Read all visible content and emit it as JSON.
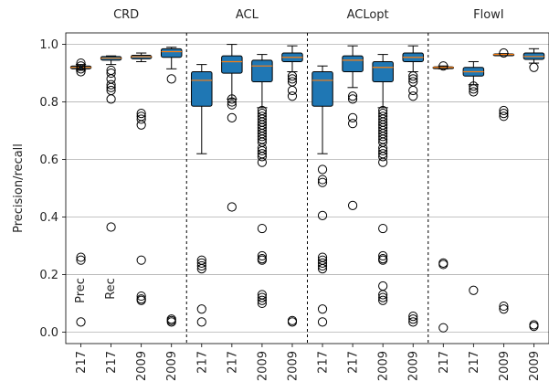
{
  "chart_data": {
    "type": "box",
    "ylabel": "Precision/recall",
    "ylim": [
      -0.04,
      1.04
    ],
    "yticks": [
      "0.0",
      "0.2",
      "0.4",
      "0.6",
      "0.8",
      "1.0"
    ],
    "grid": "horizontal",
    "groups": [
      {
        "title": "CRD",
        "boxes": [
          {
            "x": "217",
            "min": 0.91,
            "q1": 0.915,
            "median": 0.92,
            "q3": 0.925,
            "max": 0.93,
            "fliers": [
              0.935,
              0.925,
              0.915,
              0.905,
              0.26,
              0.25,
              0.035
            ]
          },
          {
            "x": "217",
            "min": 0.93,
            "q1": 0.945,
            "median": 0.952,
            "q3": 0.958,
            "max": 0.96,
            "fliers": [
              0.91,
              0.9,
              0.88,
              0.86,
              0.85,
              0.84,
              0.81,
              0.365
            ]
          },
          {
            "x": "2009",
            "min": 0.94,
            "q1": 0.95,
            "median": 0.957,
            "q3": 0.962,
            "max": 0.97,
            "fliers": [
              0.76,
              0.75,
              0.74,
              0.72,
              0.25,
              0.125,
              0.115,
              0.11
            ]
          },
          {
            "x": "2009",
            "min": 0.915,
            "q1": 0.955,
            "median": 0.975,
            "q3": 0.985,
            "max": 0.99,
            "fliers": [
              0.88,
              0.045,
              0.04,
              0.035
            ]
          }
        ]
      },
      {
        "title": "ACL",
        "boxes": [
          {
            "x": "217",
            "min": 0.62,
            "q1": 0.785,
            "median": 0.875,
            "q3": 0.905,
            "max": 0.93,
            "fliers": [
              0.25,
              0.24,
              0.23,
              0.22,
              0.08,
              0.035
            ]
          },
          {
            "x": "217",
            "min": 0.81,
            "q1": 0.9,
            "median": 0.94,
            "q3": 0.96,
            "max": 1.0,
            "fliers": [
              0.81,
              0.8,
              0.79,
              0.745,
              0.435
            ]
          },
          {
            "x": "2009",
            "min": 0.78,
            "q1": 0.87,
            "median": 0.925,
            "q3": 0.945,
            "max": 0.965,
            "fliers": [
              0.77,
              0.76,
              0.75,
              0.74,
              0.73,
              0.72,
              0.71,
              0.7,
              0.69,
              0.68,
              0.67,
              0.66,
              0.64,
              0.63,
              0.62,
              0.61,
              0.59,
              0.36,
              0.265,
              0.255,
              0.25,
              0.13,
              0.12,
              0.11,
              0.1
            ]
          },
          {
            "x": "2009",
            "min": 0.905,
            "q1": 0.94,
            "median": 0.955,
            "q3": 0.97,
            "max": 0.995,
            "fliers": [
              0.89,
              0.88,
              0.87,
              0.84,
              0.82,
              0.04,
              0.035
            ]
          }
        ]
      },
      {
        "title": "ACLopt",
        "boxes": [
          {
            "x": "217",
            "min": 0.62,
            "q1": 0.785,
            "median": 0.875,
            "q3": 0.905,
            "max": 0.925,
            "fliers": [
              0.565,
              0.53,
              0.52,
              0.405,
              0.26,
              0.25,
              0.24,
              0.23,
              0.22,
              0.08,
              0.035
            ]
          },
          {
            "x": "217",
            "min": 0.85,
            "q1": 0.905,
            "median": 0.945,
            "q3": 0.96,
            "max": 0.995,
            "fliers": [
              0.82,
              0.81,
              0.745,
              0.725,
              0.44
            ]
          },
          {
            "x": "2009",
            "min": 0.78,
            "q1": 0.87,
            "median": 0.92,
            "q3": 0.94,
            "max": 0.965,
            "fliers": [
              0.77,
              0.76,
              0.75,
              0.74,
              0.73,
              0.72,
              0.71,
              0.7,
              0.69,
              0.68,
              0.67,
              0.66,
              0.64,
              0.63,
              0.62,
              0.61,
              0.59,
              0.36,
              0.265,
              0.255,
              0.25,
              0.16,
              0.13,
              0.12,
              0.11
            ]
          },
          {
            "x": "2009",
            "min": 0.905,
            "q1": 0.94,
            "median": 0.955,
            "q3": 0.97,
            "max": 0.995,
            "fliers": [
              0.89,
              0.88,
              0.87,
              0.84,
              0.82,
              0.055,
              0.045,
              0.035
            ]
          }
        ]
      },
      {
        "title": "FlowI",
        "boxes": [
          {
            "x": "217",
            "min": 0.915,
            "q1": 0.918,
            "median": 0.92,
            "q3": 0.922,
            "max": 0.925,
            "fliers": [
              0.925,
              0.235,
              0.24,
              0.015
            ]
          },
          {
            "x": "217",
            "min": 0.86,
            "q1": 0.89,
            "median": 0.905,
            "q3": 0.92,
            "max": 0.94,
            "fliers": [
              0.855,
              0.845,
              0.835,
              0.145
            ]
          },
          {
            "x": "2009",
            "min": 0.962,
            "q1": 0.964,
            "median": 0.965,
            "q3": 0.967,
            "max": 0.968,
            "fliers": [
              0.97,
              0.77,
              0.76,
              0.75,
              0.09,
              0.08
            ]
          },
          {
            "x": "2009",
            "min": 0.935,
            "q1": 0.948,
            "median": 0.958,
            "q3": 0.97,
            "max": 0.985,
            "fliers": [
              0.92,
              0.025,
              0.02
            ]
          }
        ]
      }
    ],
    "annotations": [
      "Prec",
      "Rec"
    ]
  }
}
